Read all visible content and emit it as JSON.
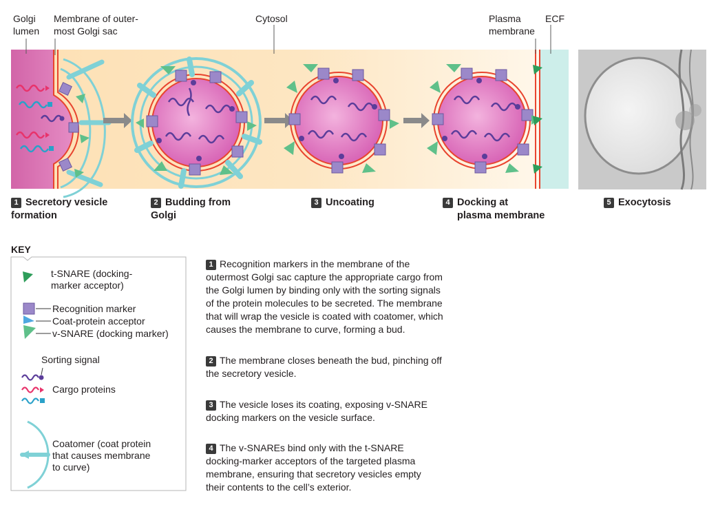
{
  "top_labels": {
    "golgi_lumen_1": "Golgi",
    "golgi_lumen_2": "lumen",
    "membrane_1": "Membrane of outer-",
    "membrane_2": "most Golgi sac",
    "cytosol": "Cytosol",
    "plasma_1": "Plasma",
    "plasma_2": "membrane",
    "ecf": "ECF"
  },
  "steps": [
    {
      "num": "1",
      "line1": "Secretory vesicle",
      "line2": "formation"
    },
    {
      "num": "2",
      "line1": "Budding from",
      "line2": "Golgi"
    },
    {
      "num": "3",
      "line1": "Uncoating",
      "line2": ""
    },
    {
      "num": "4",
      "line1": "Docking at",
      "line2": "plasma membrane"
    },
    {
      "num": "5",
      "line1": "Exocytosis",
      "line2": ""
    }
  ],
  "key": {
    "title": "KEY",
    "tsnare_1": "t-SNARE (docking-",
    "tsnare_2": "marker acceptor)",
    "recognition": "Recognition marker",
    "coat_acceptor": "Coat-protein acceptor",
    "vsnare": "v-SNARE (docking marker)",
    "sorting": "Sorting signal",
    "cargo": "Cargo proteins",
    "coatomer_1": "Coatomer (coat protein",
    "coatomer_2": "that causes membrane",
    "coatomer_3": "to curve)"
  },
  "descriptions": [
    {
      "num": "1",
      "lines": [
        "Recognition markers in the membrane of the",
        "outermost Golgi sac capture the appropriate cargo from",
        "the Golgi lumen by binding only with the sorting signals",
        "of the protein molecules to be secreted. The membrane",
        "that will wrap the vesicle is coated with coatomer, which",
        "causes the membrane to curve, forming a bud."
      ]
    },
    {
      "num": "2",
      "lines": [
        "The membrane closes beneath the bud, pinching off",
        "the secretory vesicle."
      ]
    },
    {
      "num": "3",
      "lines": [
        "The vesicle loses its coating, exposing v-SNARE",
        "docking markers on the vesicle surface."
      ]
    },
    {
      "num": "4",
      "lines": [
        "The v-SNAREs bind only with the t-SNARE",
        "docking-marker acceptors of the targeted plasma",
        "membrane, ensuring that secretory vesicles empty",
        "their contents to the cell’s exterior."
      ]
    }
  ],
  "colors": {
    "golgi_lumen": "#d96fb0",
    "cytosol": "#fbe3b8",
    "ecf": "#cdeeea",
    "membrane": "#e8442e",
    "vesicle": "#e37bc4",
    "recognition_marker": "#9b88c9",
    "snare": "#5fc08a",
    "coatomer": "#7fd1d6",
    "cargo_red": "#e8336b",
    "cargo_blue": "#2aa1c9",
    "cargo_purple": "#5b3d9a"
  }
}
